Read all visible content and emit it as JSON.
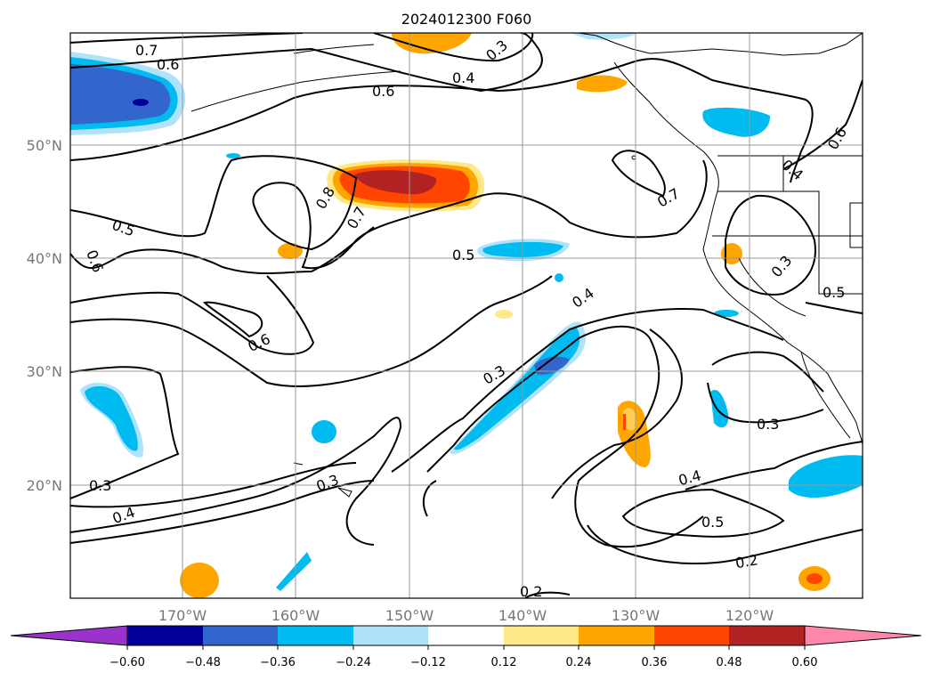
{
  "map": {
    "title": "2024012300 F060",
    "lon_labels": [
      "170°W",
      "160°W",
      "150°W",
      "140°W",
      "130°W",
      "120°W"
    ],
    "lat_labels": [
      "50°N",
      "40°N",
      "30°N",
      "20°N"
    ],
    "contour_labels": [
      {
        "id": "c1",
        "text": "0.7"
      },
      {
        "id": "c2",
        "text": "0.6"
      },
      {
        "id": "c3",
        "text": "0.3"
      },
      {
        "id": "c4",
        "text": "0.4"
      },
      {
        "id": "c5",
        "text": "0.6"
      },
      {
        "id": "c6",
        "text": "0.6"
      },
      {
        "id": "c7",
        "text": "0.5"
      },
      {
        "id": "c8",
        "text": "0.6"
      },
      {
        "id": "c9",
        "text": "0.8"
      },
      {
        "id": "c10",
        "text": "0.7"
      },
      {
        "id": "c11",
        "text": "0.7"
      },
      {
        "id": "c12",
        "text": "0.4"
      },
      {
        "id": "c13",
        "text": "0.5"
      },
      {
        "id": "c14",
        "text": "0.4"
      },
      {
        "id": "c15",
        "text": "0.3"
      },
      {
        "id": "c16",
        "text": "0.5"
      },
      {
        "id": "c17",
        "text": "0.6"
      },
      {
        "id": "c18",
        "text": "0.3"
      },
      {
        "id": "c19",
        "text": "0.3"
      },
      {
        "id": "c20",
        "text": "0.3"
      },
      {
        "id": "c21",
        "text": "0.4"
      },
      {
        "id": "c22",
        "text": "0.3"
      },
      {
        "id": "c23",
        "text": "0.4"
      },
      {
        "id": "c24",
        "text": "0.5"
      },
      {
        "id": "c25",
        "text": "0.2"
      },
      {
        "id": "c26",
        "text": "0.2"
      }
    ]
  },
  "colorbar": {
    "tick_labels": [
      "−0.60",
      "−0.48",
      "−0.36",
      "−0.24",
      "−0.12",
      "0.12",
      "0.24",
      "0.36",
      "0.48",
      "0.60"
    ],
    "colors": [
      "#9933cc",
      "#000099",
      "#3366cc",
      "#00bbf0",
      "#b0e2fa",
      "#ffffff",
      "#ffe88a",
      "#ffa500",
      "#ff4500",
      "#b22222",
      "#ff88aa"
    ]
  }
}
